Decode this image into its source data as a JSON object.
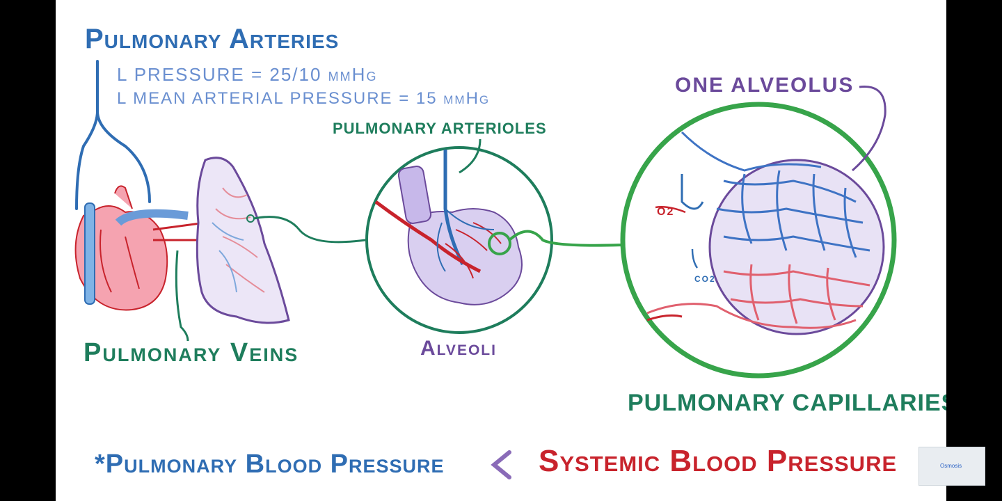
{
  "labels": {
    "pulmonary_arteries": "Pulmonary Arteries",
    "pressure": "L PRESSURE = 25/10 mmHg",
    "mean_pressure": "L MEAN ARTERIAL PRESSURE = 15 mmHg",
    "pulmonary_arterioles": "PULMONARY ARTERIOLES",
    "one_alveolus": "ONE ALVEOLUS",
    "pulmonary_veins": "Pulmonary Veins",
    "alveoli": "Alveoli",
    "pulmonary_capillaries": "PULMONARY CAPILLARIES",
    "o2": "O2",
    "co2": "CO2",
    "bottom_left": "*Pulmonary Blood Pressure",
    "bottom_symbol": "<",
    "bottom_right": "Systemic Blood Pressure",
    "logo": "Osmosis"
  },
  "colors": {
    "blue": "#2f6db3",
    "light_blue": "#6a8fd0",
    "dark_green": "#1e7d5c",
    "green": "#37a44a",
    "purple": "#6b4a9b",
    "red": "#c8232c",
    "lung_purple": "#b8a6dd",
    "heart_pink": "#f29aa8"
  }
}
